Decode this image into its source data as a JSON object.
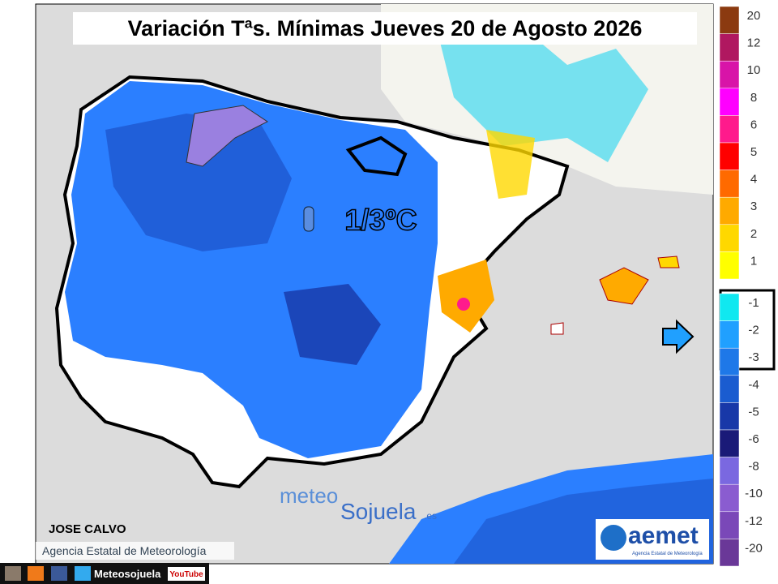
{
  "header": {
    "title": "Variación Tªs. Mínimas Jueves 20 de Agosto 2026"
  },
  "annotation": {
    "text": "1/3ºC"
  },
  "legend": {
    "items": [
      {
        "label": "20",
        "color": "#8b3a10"
      },
      {
        "label": "12",
        "color": "#b01860"
      },
      {
        "label": "10",
        "color": "#d814a8"
      },
      {
        "label": "8",
        "color": "#ff00ff"
      },
      {
        "label": "6",
        "color": "#ff1a8c"
      },
      {
        "label": "5",
        "color": "#ff0000"
      },
      {
        "label": "4",
        "color": "#ff6a00"
      },
      {
        "label": "3",
        "color": "#ffaa00"
      },
      {
        "label": "2",
        "color": "#ffd800"
      },
      {
        "label": "1",
        "color": "#ffff00"
      },
      {
        "label": "-1",
        "color": "#10e8f0"
      },
      {
        "label": "-2",
        "color": "#20a0ff"
      },
      {
        "label": "-3",
        "color": "#1e78e8"
      },
      {
        "label": "-4",
        "color": "#1a5cd0"
      },
      {
        "label": "-5",
        "color": "#1838a8"
      },
      {
        "label": "-6",
        "color": "#1a1a78"
      },
      {
        "label": "-8",
        "color": "#7a68e0"
      },
      {
        "label": "-10",
        "color": "#8a5cd0"
      },
      {
        "label": "-12",
        "color": "#7a48b8"
      },
      {
        "label": "-20",
        "color": "#6a3898"
      }
    ]
  },
  "credits": {
    "author": "JOSE CALVO",
    "source": "Agencia Estatal de Meteorología",
    "logo_meteo": "meteo",
    "logo_sojuela": "Sojuela",
    "logo_es": ".es",
    "aemet": "aemet",
    "aemet_sub": "Agencia Estatal de Meteorología"
  },
  "footer": {
    "site": "Meteosojuela",
    "youtube": "YouTube"
  }
}
